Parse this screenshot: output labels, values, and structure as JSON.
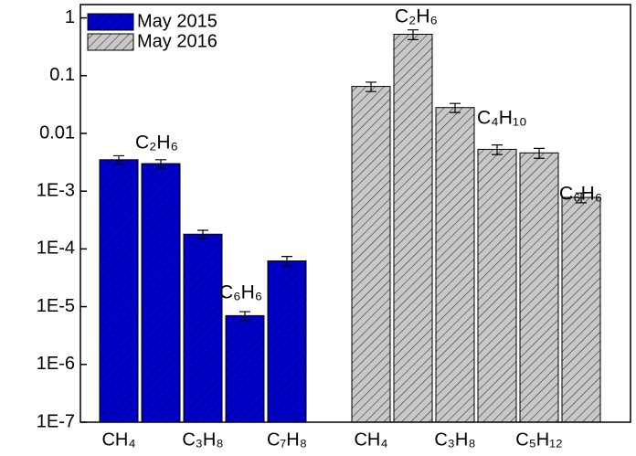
{
  "chart_data": {
    "type": "bar",
    "log_scale": true,
    "categories": [
      "CH₄",
      null,
      "C₃H₈",
      null,
      "C₇H₈",
      null,
      "CH₄",
      null,
      "C₃H₈",
      null,
      "C₅H₁₂",
      null
    ],
    "series": [
      {
        "name": "May 2015",
        "color": "#0000cc",
        "values": [
          0.0035,
          0.003,
          0.00018,
          7e-06,
          6.2e-05,
          null,
          null,
          null,
          null,
          null,
          null,
          null
        ],
        "errors": [
          0.0006,
          0.0005,
          3e-05,
          1.2e-06,
          1.2e-05,
          null,
          null,
          null,
          null,
          null,
          null,
          null
        ]
      },
      {
        "name": "May 2016",
        "color": "#c8c8c8",
        "values": [
          null,
          null,
          null,
          null,
          null,
          null,
          0.065,
          0.52,
          0.028,
          0.0053,
          0.0046,
          0.00078
        ],
        "errors": [
          null,
          null,
          null,
          null,
          null,
          null,
          0.012,
          0.1,
          0.005,
          0.001,
          0.0009,
          0.00015
        ]
      }
    ],
    "annotations": [
      "C₂H₆",
      "C₆H₆",
      "C₂H₆",
      "C₄H₁₀",
      "C₆H₆"
    ],
    "ylim": [
      1e-07,
      1.7
    ],
    "yticks": [
      1,
      0.1,
      0.01,
      {
        "value": 0.001,
        "label": "1E-3"
      },
      {
        "value": 0.0001,
        "label": "1E-4"
      },
      {
        "value": 1e-05,
        "label": "1E-5"
      },
      {
        "value": 1e-06,
        "label": "1E-6"
      },
      {
        "value": 1e-07,
        "label": "1E-7"
      }
    ],
    "legend": "top-left",
    "hatch": true
  }
}
